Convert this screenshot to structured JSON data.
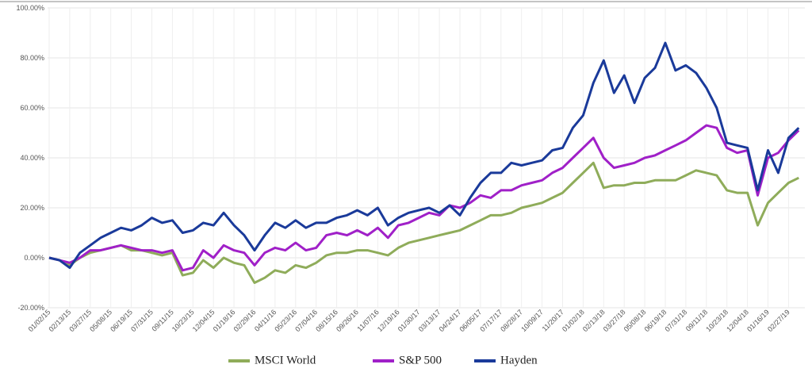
{
  "chart_data": {
    "type": "line",
    "categories": [
      "01/02/15",
      null,
      "02/13/15",
      null,
      "03/27/15",
      null,
      "05/08/15",
      null,
      "06/19/15",
      null,
      "07/31/15",
      null,
      "09/11/15",
      null,
      "10/23/15",
      null,
      "12/04/15",
      null,
      "01/18/16",
      null,
      "02/29/16",
      null,
      "04/11/16",
      null,
      "05/23/16",
      null,
      "07/04/16",
      null,
      "08/15/16",
      null,
      "09/26/16",
      null,
      "11/07/16",
      null,
      "12/19/16",
      null,
      "01/30/17",
      null,
      "03/13/17",
      null,
      "04/24/17",
      null,
      "06/05/17",
      null,
      "07/17/17",
      null,
      "08/28/17",
      null,
      "10/09/17",
      null,
      "11/20/17",
      null,
      "01/02/18",
      null,
      "02/13/18",
      null,
      "03/27/18",
      null,
      "05/08/18",
      null,
      "06/19/18",
      null,
      "07/31/18",
      null,
      "09/11/18",
      null,
      "10/23/18",
      null,
      "12/04/18",
      null,
      "01/16/19",
      null,
      "02/27/19",
      null
    ],
    "series": [
      {
        "name": "MSCI World",
        "color": "#8fac5a",
        "values": [
          0,
          -1,
          -3,
          0,
          2,
          3,
          4,
          5,
          3,
          3,
          2,
          1,
          2,
          -7,
          -6,
          -1,
          -4,
          0,
          -2,
          -3,
          -10,
          -8,
          -5,
          -6,
          -3,
          -4,
          -2,
          1,
          2,
          2,
          3,
          3,
          2,
          1,
          4,
          6,
          7,
          8,
          9,
          10,
          11,
          13,
          15,
          17,
          17,
          18,
          20,
          21,
          22,
          24,
          26,
          30,
          34,
          38,
          28,
          29,
          29,
          30,
          30,
          31,
          31,
          31,
          33,
          35,
          34,
          33,
          27,
          26,
          26,
          13,
          22,
          26,
          30,
          32
        ]
      },
      {
        "name": "S&P 500",
        "color": "#a020c8",
        "values": [
          0,
          -1,
          -2,
          0,
          3,
          3,
          4,
          5,
          4,
          3,
          3,
          2,
          3,
          -5,
          -4,
          3,
          0,
          5,
          3,
          2,
          -3,
          2,
          4,
          3,
          6,
          3,
          4,
          9,
          10,
          9,
          11,
          9,
          12,
          8,
          13,
          14,
          16,
          18,
          17,
          21,
          20,
          22,
          25,
          24,
          27,
          27,
          29,
          30,
          31,
          34,
          36,
          40,
          44,
          48,
          40,
          36,
          37,
          38,
          40,
          41,
          43,
          45,
          47,
          50,
          53,
          52,
          44,
          42,
          43,
          25,
          40,
          42,
          47,
          51
        ]
      },
      {
        "name": "Hayden",
        "color": "#1a3a9a",
        "values": [
          0,
          -1,
          -4,
          2,
          5,
          8,
          10,
          12,
          11,
          13,
          16,
          14,
          15,
          10,
          11,
          14,
          13,
          18,
          13,
          9,
          3,
          9,
          14,
          12,
          15,
          12,
          14,
          14,
          16,
          17,
          19,
          17,
          20,
          13,
          16,
          18,
          19,
          20,
          18,
          21,
          17,
          24,
          30,
          34,
          34,
          38,
          37,
          38,
          39,
          43,
          44,
          52,
          57,
          70,
          79,
          66,
          73,
          62,
          72,
          76,
          86,
          75,
          77,
          74,
          68,
          60,
          46,
          45,
          44,
          27,
          43,
          34,
          48,
          52
        ]
      }
    ],
    "ylim": [
      -20,
      100
    ],
    "yticks": [
      {
        "value": -20,
        "label": "-20.00%"
      },
      {
        "value": 0,
        "label": "0.00%"
      },
      {
        "value": 20,
        "label": "20.00%"
      },
      {
        "value": 40,
        "label": "40.00%"
      },
      {
        "value": 60,
        "label": "60.00%"
      },
      {
        "value": 80,
        "label": "80.00%"
      },
      {
        "value": 100,
        "label": "100.00%"
      }
    ],
    "grid": true
  }
}
